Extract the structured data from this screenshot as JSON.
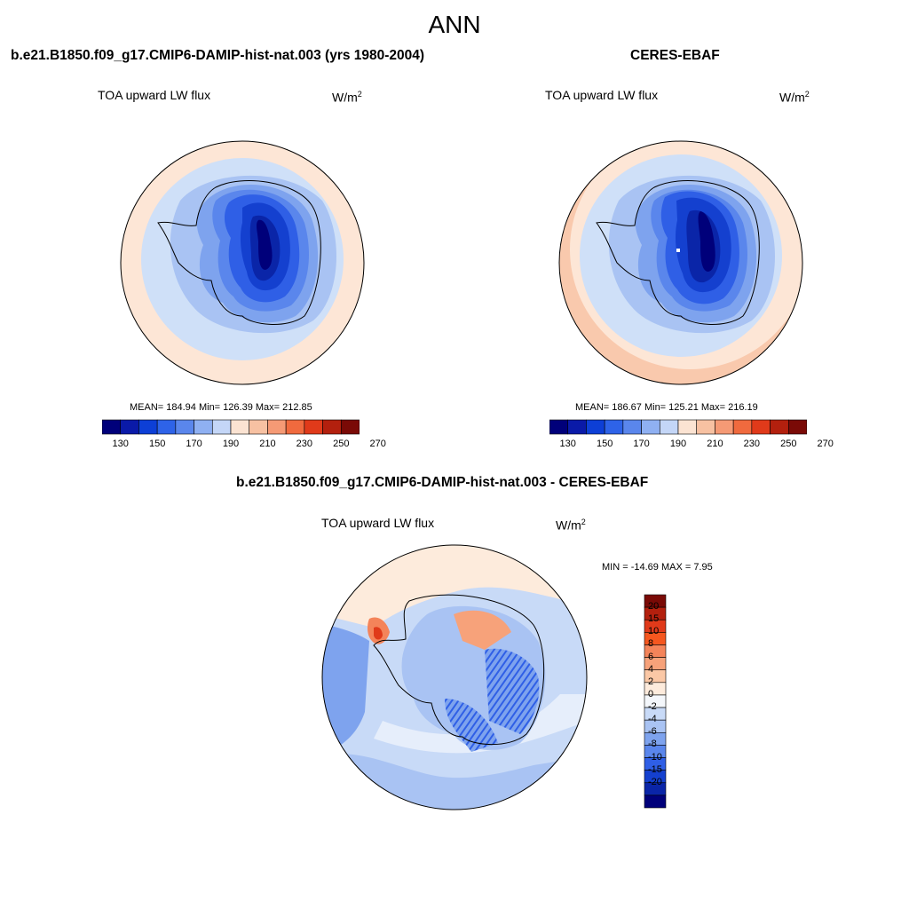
{
  "figure": {
    "title": "ANN",
    "panels": [
      {
        "id": "test",
        "title": "b.e21.B1850.f09_g17.CMIP6-DAMIP-hist-nat.003 (yrs 1980-2004)",
        "variable": "TOA upward LW flux",
        "units_base": "W/m",
        "units_exp": "2",
        "stats": "MEAN= 184.94  Min= 126.39  Max= 212.85"
      },
      {
        "id": "obs",
        "title": "CERES-EBAF",
        "variable": "TOA upward LW flux",
        "units_base": "W/m",
        "units_exp": "2",
        "stats": "MEAN= 186.67  Min= 125.21  Max= 216.19"
      },
      {
        "id": "diff",
        "title": "b.e21.B1850.f09_g17.CMIP6-DAMIP-hist-nat.003 - CERES-EBAF",
        "variable": "TOA upward LW flux",
        "units_base": "W/m",
        "units_exp": "2",
        "stats": "MIN = -14.69 MAX =   7.95"
      }
    ],
    "field_colorbar": {
      "colors": [
        "#00007a",
        "#0a1aa8",
        "#0d3fd6",
        "#2e63e8",
        "#5a86ec",
        "#8fb0f2",
        "#c4d6f7",
        "#fbe3d2",
        "#f7c1a2",
        "#f59a75",
        "#f06a3e",
        "#e03a1a",
        "#b3200e",
        "#7a0a06"
      ],
      "tick_labels": [
        "130",
        "150",
        "170",
        "190",
        "210",
        "230",
        "250",
        "270"
      ]
    },
    "diff_colorbar": {
      "colors": [
        "#7a0a06",
        "#b3200e",
        "#e03a1a",
        "#f5571f",
        "#f4845a",
        "#f7a27a",
        "#fbc8a6",
        "#fdebdc",
        "#f4f7fb",
        "#c8daf7",
        "#a9c3f3",
        "#7ea3ee",
        "#5a86ec",
        "#2f5fe6",
        "#1440cf",
        "#0a25a8",
        "#00007a"
      ],
      "tick_labels": [
        "20",
        "15",
        "10",
        "8",
        "6",
        "4",
        "2",
        "0",
        "-2",
        "-4",
        "-6",
        "-8",
        "-10",
        "-15",
        "-20"
      ]
    }
  }
}
